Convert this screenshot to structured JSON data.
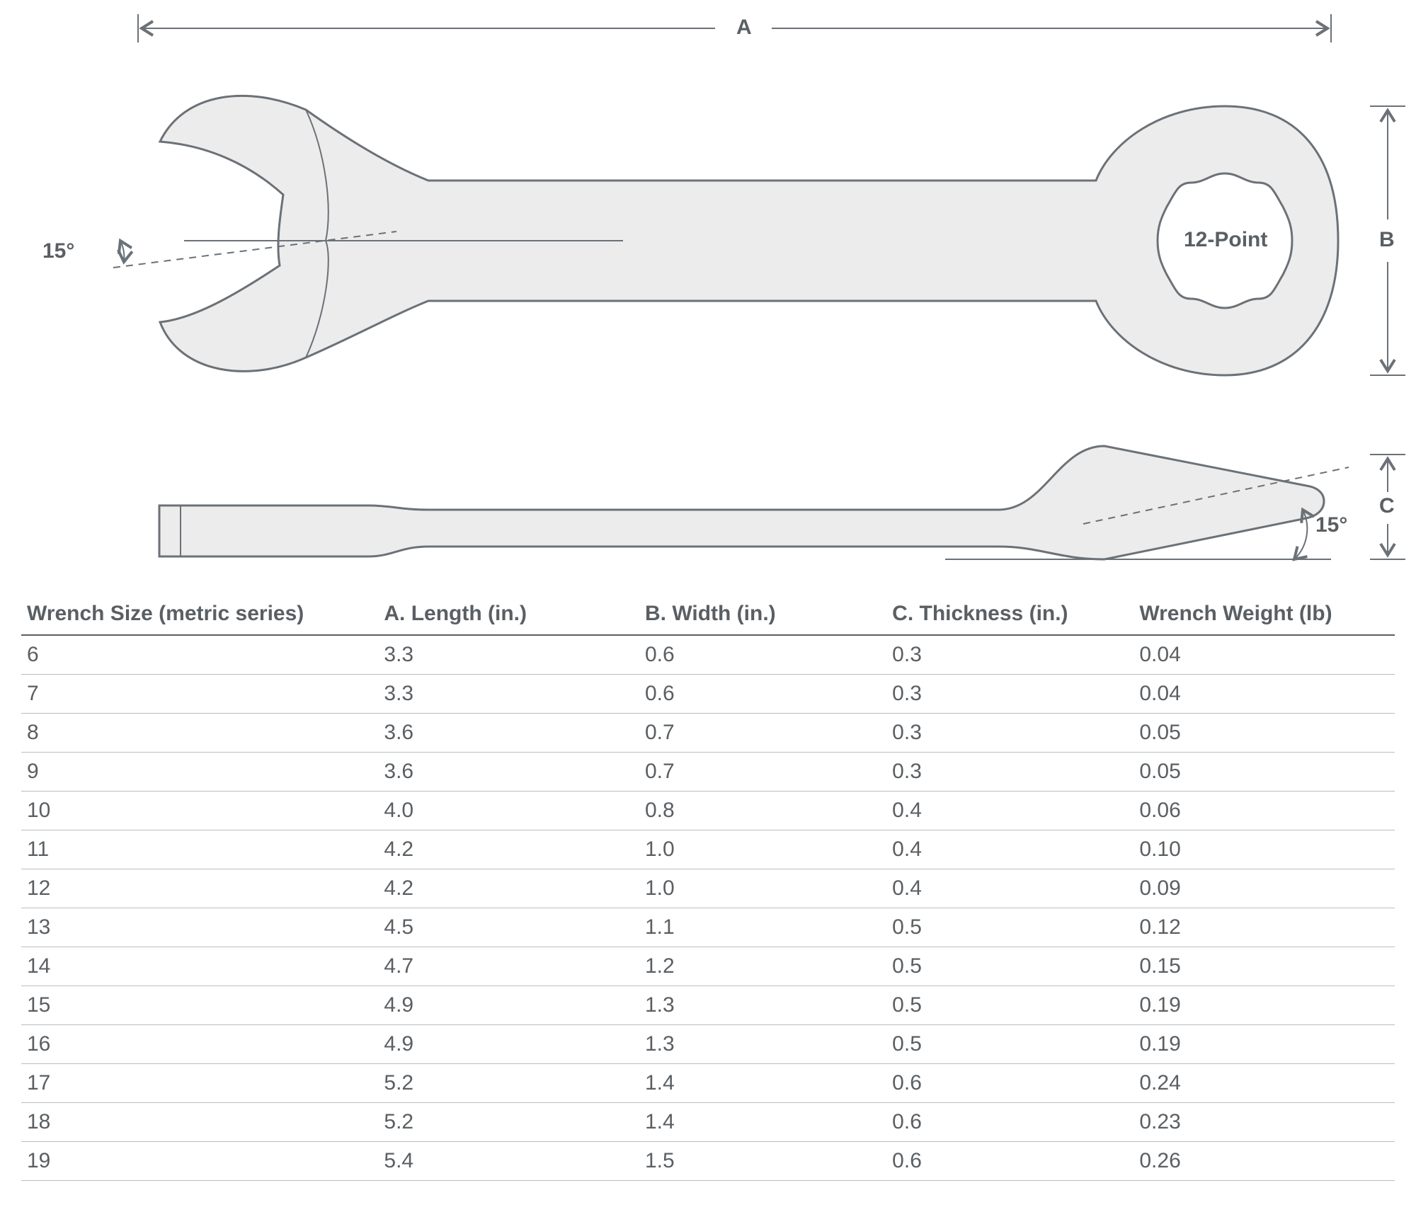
{
  "diagram": {
    "stroke_color": "#6b7177",
    "fill_color": "#ececec",
    "bg_color": "#ffffff",
    "dash_color": "#6b7177",
    "label_color": "#5a5f63",
    "label_fontsize": 30,
    "label_fontweight": "700",
    "angle_top": "15°",
    "angle_side": "15°",
    "box_end_label": "12-Point",
    "dim_A": "A",
    "dim_B": "B",
    "dim_C": "C"
  },
  "table": {
    "columns": [
      "Wrench Size (metric series)",
      "A. Length (in.)",
      "B. Width (in.)",
      "C. Thickness (in.)",
      "Wrench Weight (lb)"
    ],
    "rows": [
      [
        "6",
        "3.3",
        "0.6",
        "0.3",
        "0.04"
      ],
      [
        "7",
        "3.3",
        "0.6",
        "0.3",
        "0.04"
      ],
      [
        "8",
        "3.6",
        "0.7",
        "0.3",
        "0.05"
      ],
      [
        "9",
        "3.6",
        "0.7",
        "0.3",
        "0.05"
      ],
      [
        "10",
        "4.0",
        "0.8",
        "0.4",
        "0.06"
      ],
      [
        "11",
        "4.2",
        "1.0",
        "0.4",
        "0.10"
      ],
      [
        "12",
        "4.2",
        "1.0",
        "0.4",
        "0.09"
      ],
      [
        "13",
        "4.5",
        "1.1",
        "0.5",
        "0.12"
      ],
      [
        "14",
        "4.7",
        "1.2",
        "0.5",
        "0.15"
      ],
      [
        "15",
        "4.9",
        "1.3",
        "0.5",
        "0.19"
      ],
      [
        "16",
        "4.9",
        "1.3",
        "0.5",
        "0.19"
      ],
      [
        "17",
        "5.2",
        "1.4",
        "0.6",
        "0.24"
      ],
      [
        "18",
        "5.2",
        "1.4",
        "0.6",
        "0.23"
      ],
      [
        "19",
        "5.4",
        "1.5",
        "0.6",
        "0.26"
      ]
    ],
    "header_fontsize": 30,
    "cell_fontsize": 30,
    "header_color": "#5a5f63",
    "cell_color": "#5a5f63",
    "row_border_color": "#b8bdc1",
    "header_border_color": "#5a5f63"
  }
}
